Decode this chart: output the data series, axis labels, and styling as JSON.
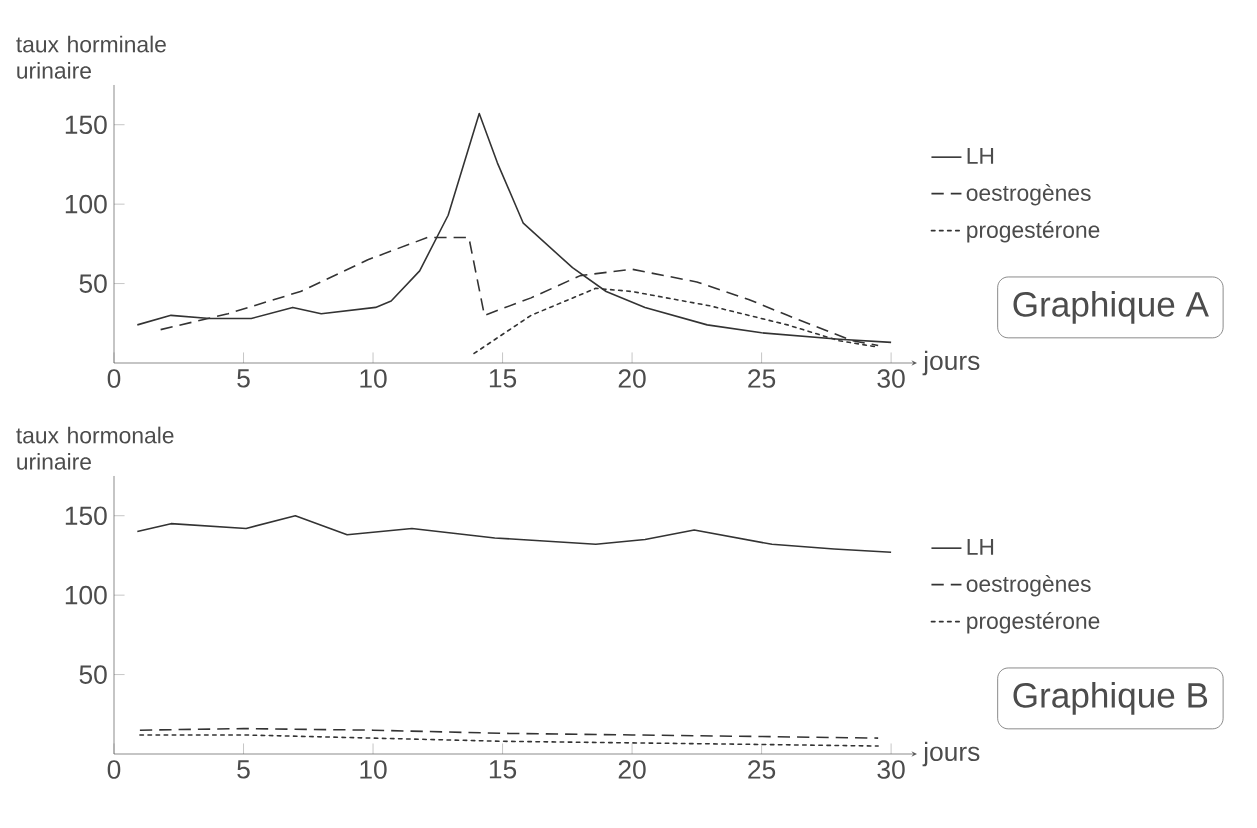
{
  "chart_data": [
    {
      "type": "line",
      "annotations": [
        "Graphique A"
      ],
      "xlabel": "jours",
      "ylabel": "taux horminale urinaire",
      "legend": "right",
      "xlim": [
        0,
        31
      ],
      "ylim": [
        0,
        175
      ],
      "xticks": [
        0,
        5,
        10,
        15,
        20,
        25,
        30
      ],
      "yticks": [
        50,
        100,
        150
      ],
      "series": [
        {
          "name": "LH",
          "color": "#333333",
          "line_style": "solid",
          "x": [
            0.9,
            2.2,
            3.7,
            5.3,
            6.9,
            8.0,
            10.1,
            10.7,
            11.8,
            12.9,
            14.1,
            14.8,
            15.8,
            17.7,
            19.0,
            20.5,
            22.9,
            25.0,
            28.0,
            30.0
          ],
          "values": [
            24,
            30,
            28,
            28,
            35,
            31,
            35,
            39,
            58,
            93,
            157,
            126,
            88,
            60,
            45,
            35,
            24,
            19,
            15,
            13
          ]
        },
        {
          "name": "oestrogènes",
          "color": "#333333",
          "line_style": "dashed",
          "x": [
            1.8,
            4.4,
            7.2,
            9.8,
            12.1,
            13.7,
            14.3,
            16.1,
            18.0,
            20.0,
            22.5,
            24.5,
            26.0,
            28.5,
            29.5
          ],
          "values": [
            21,
            31,
            45,
            65,
            79,
            79,
            30,
            41,
            55,
            59,
            51,
            40,
            30,
            14,
            11
          ]
        },
        {
          "name": "progestérone",
          "color": "#333333",
          "line_style": "dashed",
          "x": [
            13.9,
            16.1,
            18.6,
            20.0,
            23.0,
            26.0,
            28.0,
            29.5
          ],
          "values": [
            6,
            30,
            47,
            45,
            36,
            24,
            14,
            10
          ]
        }
      ]
    },
    {
      "type": "line",
      "annotations": [
        "Graphique B"
      ],
      "xlabel": "jours",
      "ylabel": "taux hormonale urinaire",
      "legend": "right",
      "xlim": [
        0,
        31
      ],
      "ylim": [
        0,
        175
      ],
      "xticks": [
        0,
        5,
        10,
        15,
        20,
        25,
        30
      ],
      "yticks": [
        50,
        100,
        150
      ],
      "series": [
        {
          "name": "LH",
          "color": "#333333",
          "line_style": "solid",
          "x": [
            0.9,
            2.2,
            5.1,
            7.0,
            9.0,
            11.5,
            14.7,
            18.6,
            20.5,
            22.4,
            25.4,
            27.8,
            30.0
          ],
          "values": [
            140,
            145,
            142,
            150,
            138,
            142,
            136,
            132,
            135,
            141,
            132,
            129,
            127
          ]
        },
        {
          "name": "oestrogènes",
          "color": "#333333",
          "line_style": "dashed",
          "x": [
            1,
            5,
            10,
            15,
            20,
            25,
            29.5
          ],
          "values": [
            15,
            16,
            15,
            13,
            12,
            11,
            10
          ]
        },
        {
          "name": "progestérone",
          "color": "#333333",
          "line_style": "dashed",
          "x": [
            1,
            5,
            10,
            15,
            20,
            25,
            29.5
          ],
          "values": [
            12,
            12,
            10,
            8,
            7,
            6,
            5
          ]
        }
      ]
    }
  ]
}
